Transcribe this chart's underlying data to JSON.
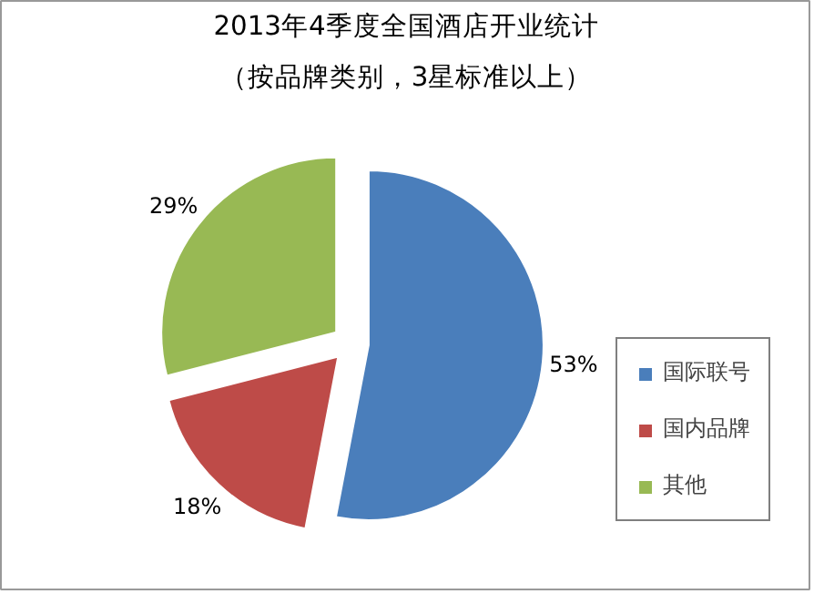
{
  "chart_data": {
    "type": "pie",
    "title": "2013年4季度全国酒店开业统计",
    "subtitle": "（按品牌类别，3星标准以上）",
    "categories": [
      "国际联号",
      "国内品牌",
      "其他"
    ],
    "values": [
      53,
      18,
      29
    ],
    "colors": [
      "#4a7ebb",
      "#be4b48",
      "#98b954"
    ],
    "value_labels": [
      "53%",
      "18%",
      "29%"
    ],
    "legend": "right"
  }
}
